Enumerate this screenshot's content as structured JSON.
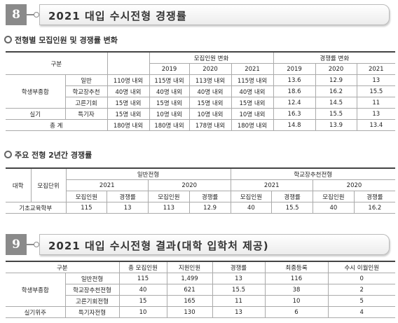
{
  "section8": {
    "number": "8",
    "title": "2021 대입 수시전형 경쟁률",
    "table1": {
      "subtitle": "전형별 모집인원 및 경쟁률 변화",
      "header": {
        "group": "구분",
        "recruit_change": "모집인원 변화",
        "rate_change": "경쟁률 변화",
        "years": [
          2019,
          2020,
          2021
        ]
      },
      "groups": [
        {
          "name": "학생부종합",
          "rows": [
            [
              "일반",
              "110명 내외",
              "115명 내외",
              "113명 내외",
              "115명 내외",
              13.6,
              12.9,
              13
            ],
            [
              "학교장추천",
              "40명 내외",
              "40명 내외",
              "40명 내외",
              "40명 내외",
              18.6,
              16.2,
              15.5
            ],
            [
              "고른기회",
              "15명 내외",
              "15명 내외",
              "15명 내외",
              "15명 내외",
              12.4,
              14.5,
              11
            ]
          ]
        },
        {
          "name": "실기",
          "rows": [
            [
              "특기자",
              "15명 내외",
              "10명 내외",
              "10명 내외",
              "10명 내외",
              16.3,
              15.5,
              13
            ]
          ]
        }
      ],
      "total": {
        "label": "총 계",
        "values": [
          "180명 내외",
          "180명 내외",
          "178명 내외",
          "180명 내외",
          14.8,
          13.9,
          13.4
        ]
      }
    },
    "table2": {
      "subtitle": "주요 전형 2년간 경쟁률",
      "header": {
        "univ": "대학",
        "unit": "모집단위",
        "tracks": [
          "일반전형",
          "학교장추천전형"
        ],
        "years": [
          2021,
          2020,
          2021,
          2020
        ],
        "cols": [
          "모집인원",
          "경쟁률",
          "모집인원",
          "경쟁률",
          "모집인원",
          "경쟁률",
          "모집인원",
          "경쟁률"
        ]
      },
      "row": {
        "unit": "기초교육학부",
        "values": [
          115,
          13,
          113,
          12.9,
          40,
          15.5,
          40,
          16.2
        ]
      }
    }
  },
  "section9": {
    "number": "9",
    "title": "2021 대입 수시전형 결과(대학 입학처 제공)",
    "table3": {
      "header": [
        "구분",
        "총 모집인원",
        "지원인원",
        "경쟁률",
        "최종등록",
        "수시 이월인원"
      ],
      "groups": [
        {
          "name": "학생부종합",
          "rows": [
            [
              "일반전형",
              115,
              "1,499",
              13,
              116,
              0
            ],
            [
              "학교장추천전형",
              40,
              621,
              15.5,
              38,
              2
            ],
            [
              "고른기회전형",
              15,
              165,
              11,
              10,
              5
            ]
          ]
        },
        {
          "name": "실기위주",
          "rows": [
            [
              "특기자전형",
              10,
              130,
              13,
              6,
              4
            ]
          ]
        }
      ]
    }
  }
}
